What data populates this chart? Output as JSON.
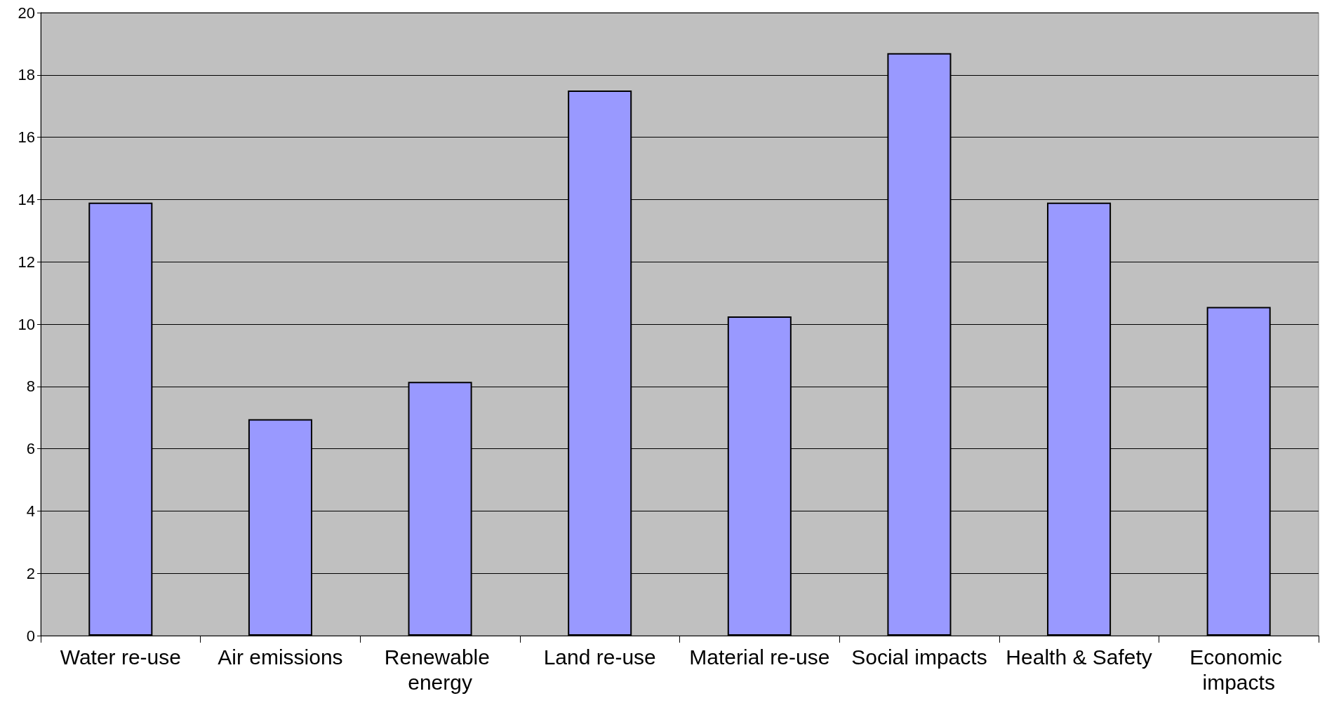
{
  "chart_data": {
    "type": "bar",
    "categories": [
      "Water re-use",
      "Air emissions",
      "Renewable energy",
      "Land re-use",
      "Material re-use",
      "Social impacts",
      "Health & Safety",
      "Economic impacts"
    ],
    "values": [
      13.9,
      6.95,
      8.15,
      17.5,
      10.25,
      18.7,
      13.9,
      10.55
    ],
    "color": "#9999ff",
    "ylim": [
      0,
      20
    ],
    "yticks": [
      0,
      2,
      4,
      6,
      8,
      10,
      12,
      14,
      16,
      18,
      20
    ],
    "grid": "y"
  }
}
